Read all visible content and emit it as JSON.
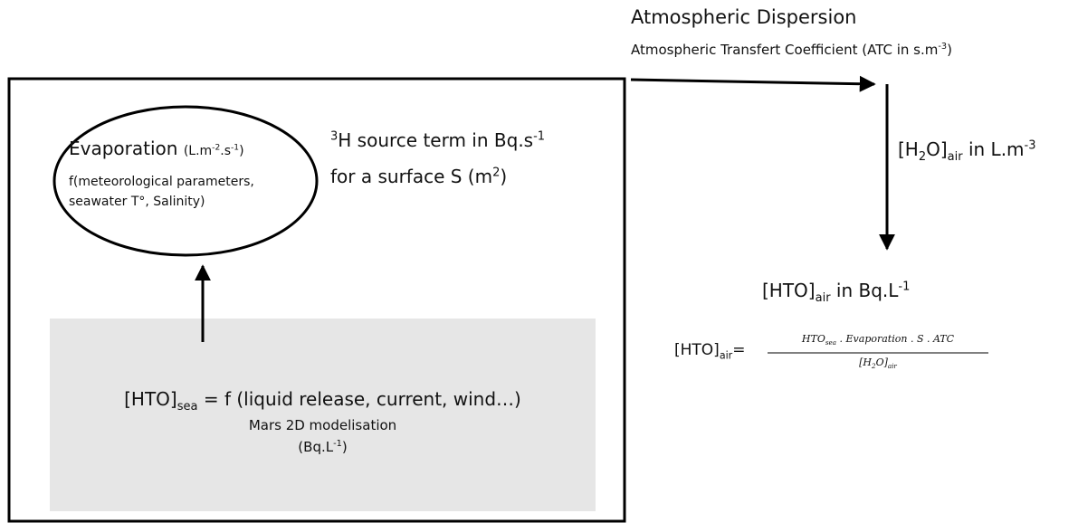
{
  "atmospheric_dispersion": {
    "title": "Atmospheric Dispersion",
    "coefficient": [
      "Atmospheric Transfert Coefficient (ATC in s.m",
      "-3",
      ")"
    ]
  },
  "evaporation": {
    "label": "Evaporation",
    "unit": [
      "(L.m",
      "-2",
      ".s",
      "-1",
      ")"
    ],
    "function": [
      "f(meteorological parameters,",
      "seawater T°, Salinity)"
    ]
  },
  "source_term": {
    "line1": [
      "3",
      "H source term in Bq.s",
      "-1"
    ],
    "line2": [
      "for a surface S (m",
      "2",
      ")"
    ]
  },
  "water_air": [
    "[H",
    "2",
    "O]",
    "air",
    " in L.m",
    "-3"
  ],
  "hto_air": [
    "[HTO]",
    "air",
    " in Bq.L",
    "-1"
  ],
  "formula": {
    "lhs": [
      "[HTO]",
      "air",
      "="
    ],
    "numerator": [
      "HTO",
      "sea",
      " . Evaporation . S . ATC"
    ],
    "denominator": [
      "[H",
      "2",
      "O]",
      "air"
    ]
  },
  "hto_sea": {
    "equation": [
      "[HTO]",
      "sea",
      " = f (liquid release, current, wind…)"
    ],
    "model": "Mars 2D modelisation",
    "unit": [
      "(Bq.L",
      "-1",
      ")"
    ]
  }
}
